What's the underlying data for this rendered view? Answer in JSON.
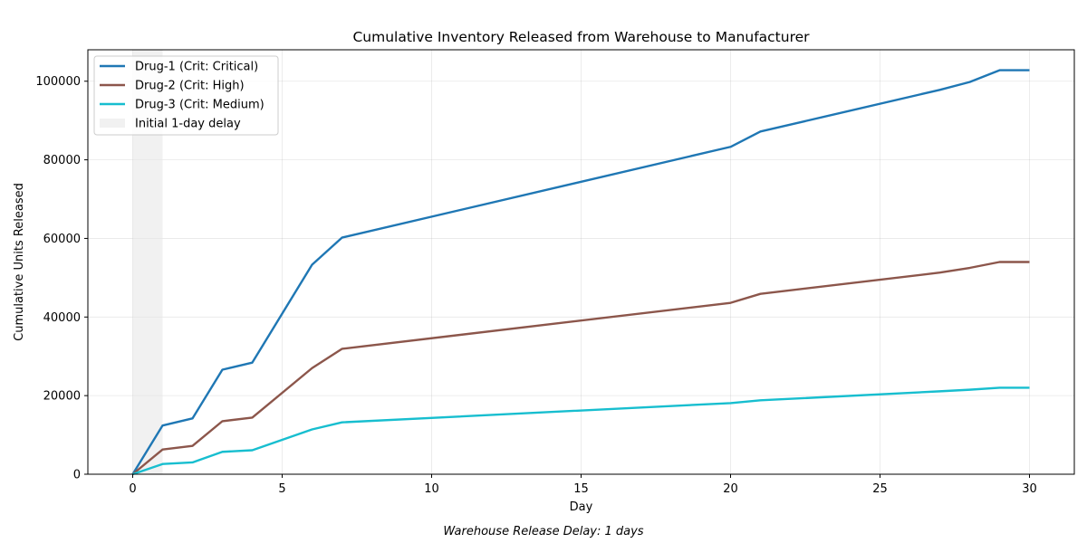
{
  "chart_data": {
    "type": "line",
    "title": "Cumulative Inventory Released from Warehouse to Manufacturer",
    "xlabel": "Day",
    "ylabel": "Cumulative Units Released",
    "xlim": [
      -1.5,
      31.5
    ],
    "ylim": [
      0,
      108000
    ],
    "xticks": [
      0,
      5,
      10,
      15,
      20,
      25,
      30
    ],
    "yticks": [
      0,
      20000,
      40000,
      60000,
      80000,
      100000
    ],
    "grid": true,
    "legend_position": "top-left",
    "shaded_region": {
      "label": "Initial 1-day delay",
      "x_start": 0,
      "x_end": 1,
      "color": "#e5e5e5"
    },
    "x": [
      0,
      1,
      2,
      3,
      4,
      6,
      7,
      20,
      21,
      27,
      28,
      29,
      30
    ],
    "series": [
      {
        "name": "Drug-1 (Crit: Critical)",
        "color": "#1f77b4",
        "values": [
          0,
          12400,
          14200,
          26600,
          28400,
          53300,
          60200,
          83300,
          87200,
          97800,
          99800,
          102800,
          102800
        ]
      },
      {
        "name": "Drug-2 (Crit: High)",
        "color": "#8c564b",
        "values": [
          0,
          6300,
          7200,
          13500,
          14400,
          27000,
          31900,
          43600,
          45900,
          51300,
          52500,
          54000,
          54000
        ]
      },
      {
        "name": "Drug-3 (Crit: Medium)",
        "color": "#17becf",
        "values": [
          0,
          2600,
          3000,
          5700,
          6100,
          11400,
          13200,
          18100,
          18800,
          21100,
          21500,
          22000,
          22000
        ]
      }
    ]
  },
  "caption": "Warehouse Release Delay: 1 days"
}
